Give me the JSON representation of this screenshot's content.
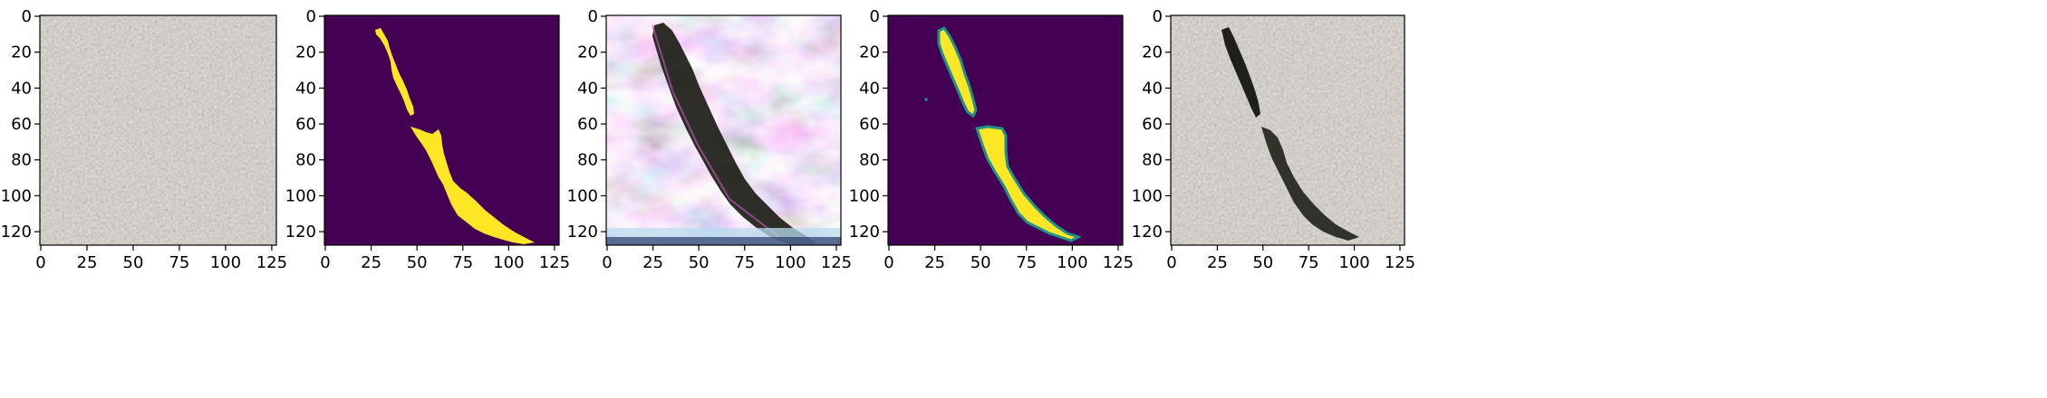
{
  "figure": {
    "panels": [
      {
        "id": "panel-1",
        "content": "gravel texture image (no crack)",
        "cmap": "photo"
      },
      {
        "id": "panel-2",
        "content": "ground-truth crack mask",
        "cmap": "viridis"
      },
      {
        "id": "panel-3",
        "content": "generated crack image with artifacts",
        "cmap": "photo"
      },
      {
        "id": "panel-4",
        "content": "predicted crack mask",
        "cmap": "viridis"
      },
      {
        "id": "panel-5",
        "content": "composited crack on gravel",
        "cmap": "photo"
      }
    ],
    "axes": {
      "xticks": [
        "0",
        "25",
        "50",
        "75",
        "100",
        "125"
      ],
      "yticks": [
        "0",
        "20",
        "40",
        "60",
        "80",
        "100",
        "120"
      ],
      "xtick_values": [
        0,
        25,
        50,
        75,
        100,
        125
      ],
      "ytick_values": [
        0,
        20,
        40,
        60,
        80,
        100,
        120
      ],
      "xlim": [
        -0.5,
        127.5
      ],
      "ylim": [
        127.5,
        -0.5
      ]
    },
    "colors": {
      "viridis_low": "#440154",
      "viridis_high": "#fde725",
      "viridis_mid": "#21918c",
      "gravel": "#a39e96",
      "crack": "#1f2118"
    }
  }
}
